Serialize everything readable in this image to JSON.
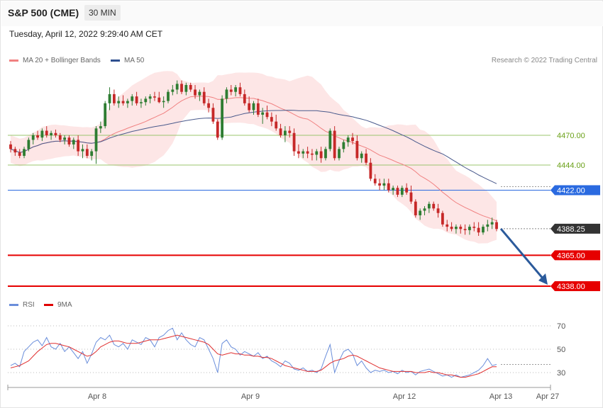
{
  "header": {
    "title": "S&P 500 (CME)",
    "timeframe": "30 MIN",
    "datetime": "Tuesday, April 12, 2022 9:29:40 AM CET"
  },
  "legend": {
    "ma20": "MA 20 + Bollinger Bands",
    "ma50": "MA 50",
    "rsi": "RSI",
    "ma9": "9MA",
    "copyright": "Research © 2022 Trading Central"
  },
  "colors": {
    "candle_up": "#2e7d32",
    "candle_down": "#c62828",
    "bollinger_fill": "#fde3e3",
    "ma20": "#f08080",
    "ma50": "#4a5a8c",
    "green_level": "#9bc46e",
    "pivot": "#2a6ae0",
    "support": "#e60000",
    "arrow": "#2b5a9b",
    "rsi": "#6a8edb",
    "rsi_ma": "#e03030"
  },
  "chart_data": {
    "type": "candlestick",
    "x_ticks": [
      "Apr 8",
      "Apr 9",
      "Apr 12",
      "Apr 13",
      "Apr 27"
    ],
    "price_range": [
      4310,
      4520
    ],
    "levels": [
      {
        "label": "4470.00",
        "value": 4470,
        "kind": "resistance"
      },
      {
        "label": "4444.00",
        "value": 4444,
        "kind": "resistance"
      },
      {
        "label": "4422.00",
        "value": 4422,
        "kind": "pivot"
      },
      {
        "label": "4388.25",
        "value": 4388.25,
        "kind": "last"
      },
      {
        "label": "4365.00",
        "value": 4365,
        "kind": "support"
      },
      {
        "label": "4338.00",
        "value": 4338,
        "kind": "support"
      }
    ],
    "forecast": {
      "from": 4388.25,
      "to": 4338
    },
    "candles": [
      [
        4462,
        4465,
        4455,
        4458
      ],
      [
        4458,
        4460,
        4452,
        4455
      ],
      [
        4455,
        4458,
        4450,
        4452
      ],
      [
        4452,
        4460,
        4450,
        4458
      ],
      [
        4458,
        4468,
        4456,
        4466
      ],
      [
        4466,
        4472,
        4462,
        4470
      ],
      [
        4470,
        4474,
        4466,
        4468
      ],
      [
        4468,
        4476,
        4465,
        4474
      ],
      [
        4474,
        4478,
        4468,
        4470
      ],
      [
        4470,
        4474,
        4466,
        4472
      ],
      [
        4472,
        4475,
        4468,
        4470
      ],
      [
        4470,
        4472,
        4464,
        4466
      ],
      [
        4466,
        4470,
        4462,
        4468
      ],
      [
        4468,
        4470,
        4460,
        4462
      ],
      [
        4462,
        4468,
        4458,
        4466
      ],
      [
        4466,
        4470,
        4452,
        4456
      ],
      [
        4456,
        4462,
        4450,
        4458
      ],
      [
        4458,
        4462,
        4450,
        4452
      ],
      [
        4452,
        4458,
        4448,
        4456
      ],
      [
        4456,
        4478,
        4445,
        4476
      ],
      [
        4476,
        4482,
        4472,
        4478
      ],
      [
        4478,
        4500,
        4476,
        4498
      ],
      [
        4498,
        4512,
        4492,
        4506
      ],
      [
        4506,
        4510,
        4496,
        4498
      ],
      [
        4498,
        4504,
        4494,
        4500
      ],
      [
        4500,
        4505,
        4496,
        4498
      ],
      [
        4498,
        4502,
        4494,
        4500
      ],
      [
        4500,
        4506,
        4496,
        4504
      ],
      [
        4504,
        4508,
        4496,
        4498
      ],
      [
        4498,
        4502,
        4494,
        4499
      ],
      [
        4499,
        4504,
        4496,
        4502
      ],
      [
        4502,
        4506,
        4498,
        4504
      ],
      [
        4504,
        4508,
        4500,
        4503
      ],
      [
        4503,
        4508,
        4498,
        4499
      ],
      [
        4499,
        4504,
        4494,
        4500
      ],
      [
        4500,
        4510,
        4498,
        4508
      ],
      [
        4508,
        4514,
        4505,
        4510
      ],
      [
        4510,
        4518,
        4506,
        4515
      ],
      [
        4515,
        4518,
        4506,
        4508
      ],
      [
        4508,
        4516,
        4505,
        4514
      ],
      [
        4514,
        4516,
        4508,
        4510
      ],
      [
        4510,
        4514,
        4502,
        4505
      ],
      [
        4505,
        4510,
        4500,
        4508
      ],
      [
        4508,
        4512,
        4496,
        4498
      ],
      [
        4498,
        4502,
        4490,
        4494
      ],
      [
        4494,
        4498,
        4480,
        4482
      ],
      [
        4482,
        4484,
        4466,
        4468
      ],
      [
        4468,
        4505,
        4466,
        4502
      ],
      [
        4502,
        4512,
        4498,
        4510
      ],
      [
        4510,
        4514,
        4505,
        4508
      ],
      [
        4508,
        4514,
        4504,
        4512
      ],
      [
        4512,
        4516,
        4504,
        4506
      ],
      [
        4506,
        4510,
        4496,
        4498
      ],
      [
        4498,
        4504,
        4490,
        4492
      ],
      [
        4492,
        4500,
        4488,
        4498
      ],
      [
        4498,
        4502,
        4486,
        4488
      ],
      [
        4488,
        4494,
        4480,
        4490
      ],
      [
        4490,
        4496,
        4484,
        4486
      ],
      [
        4486,
        4490,
        4478,
        4482
      ],
      [
        4482,
        4488,
        4474,
        4476
      ],
      [
        4476,
        4480,
        4468,
        4470
      ],
      [
        4470,
        4478,
        4464,
        4474
      ],
      [
        4474,
        4478,
        4468,
        4472
      ],
      [
        4472,
        4476,
        4452,
        4456
      ],
      [
        4456,
        4462,
        4450,
        4454
      ],
      [
        4454,
        4458,
        4450,
        4456
      ],
      [
        4456,
        4460,
        4450,
        4454
      ],
      [
        4454,
        4458,
        4448,
        4453
      ],
      [
        4453,
        4458,
        4448,
        4456
      ],
      [
        4456,
        4460,
        4446,
        4450
      ],
      [
        4450,
        4460,
        4448,
        4458
      ],
      [
        4458,
        4476,
        4456,
        4474
      ],
      [
        4474,
        4478,
        4448,
        4450
      ],
      [
        4450,
        4460,
        4448,
        4458
      ],
      [
        4458,
        4466,
        4455,
        4464
      ],
      [
        4464,
        4470,
        4460,
        4468
      ],
      [
        4468,
        4472,
        4462,
        4465
      ],
      [
        4465,
        4470,
        4448,
        4450
      ],
      [
        4450,
        4456,
        4446,
        4454
      ],
      [
        4454,
        4458,
        4444,
        4446
      ],
      [
        4446,
        4450,
        4430,
        4432
      ],
      [
        4432,
        4436,
        4426,
        4428
      ],
      [
        4428,
        4432,
        4422,
        4426
      ],
      [
        4426,
        4432,
        4422,
        4428
      ],
      [
        4428,
        4432,
        4420,
        4422
      ],
      [
        4422,
        4426,
        4418,
        4424
      ],
      [
        4424,
        4426,
        4416,
        4418
      ],
      [
        4418,
        4426,
        4416,
        4424
      ],
      [
        4424,
        4428,
        4418,
        4420
      ],
      [
        4420,
        4426,
        4410,
        4412
      ],
      [
        4412,
        4414,
        4398,
        4400
      ],
      [
        4400,
        4406,
        4396,
        4404
      ],
      [
        4404,
        4408,
        4400,
        4406
      ],
      [
        4406,
        4412,
        4402,
        4410
      ],
      [
        4410,
        4412,
        4404,
        4406
      ],
      [
        4406,
        4410,
        4398,
        4402
      ],
      [
        4402,
        4404,
        4390,
        4392
      ],
      [
        4392,
        4396,
        4386,
        4390
      ],
      [
        4390,
        4394,
        4386,
        4388
      ],
      [
        4388,
        4392,
        4384,
        4390
      ],
      [
        4390,
        4392,
        4384,
        4388
      ],
      [
        4388,
        4392,
        4383,
        4387
      ],
      [
        4387,
        4392,
        4383,
        4390
      ],
      [
        4390,
        4394,
        4386,
        4389
      ],
      [
        4389,
        4394,
        4382,
        4385
      ],
      [
        4385,
        4392,
        4383,
        4390
      ],
      [
        4390,
        4396,
        4386,
        4392
      ],
      [
        4392,
        4398,
        4388,
        4394
      ],
      [
        4394,
        4396,
        4386,
        4388
      ]
    ],
    "rsi": {
      "range": [
        20,
        80
      ],
      "ticks": [
        70,
        50,
        30
      ],
      "rsi_values": [
        36,
        38,
        35,
        48,
        52,
        56,
        58,
        53,
        60,
        52,
        50,
        55,
        48,
        52,
        47,
        42,
        48,
        38,
        46,
        56,
        60,
        58,
        62,
        54,
        52,
        55,
        50,
        58,
        56,
        54,
        60,
        58,
        52,
        60,
        62,
        66,
        68,
        58,
        64,
        58,
        54,
        52,
        60,
        58,
        50,
        42,
        30,
        55,
        58,
        52,
        50,
        45,
        48,
        46,
        44,
        47,
        42,
        44,
        40,
        38,
        35,
        40,
        38,
        33,
        32,
        34,
        31,
        32,
        30,
        33,
        44,
        54,
        30,
        40,
        48,
        50,
        46,
        36,
        40,
        34,
        30,
        32,
        31,
        32,
        30,
        31,
        29,
        32,
        30,
        31,
        28,
        31,
        32,
        33,
        31,
        29,
        27,
        28,
        26,
        28,
        26,
        27,
        28,
        30,
        32,
        36,
        42,
        36,
        37
      ],
      "ma_values": [
        34,
        35,
        36,
        38,
        40,
        44,
        48,
        51,
        54,
        55,
        55,
        54,
        53,
        52,
        50,
        48,
        46,
        44,
        45,
        48,
        52,
        54,
        56,
        57,
        57,
        56,
        55,
        55,
        55,
        56,
        57,
        58,
        58,
        58,
        59,
        60,
        61,
        62,
        61,
        60,
        59,
        58,
        57,
        56,
        54,
        50,
        46,
        45,
        46,
        47,
        46,
        46,
        45,
        45,
        44,
        44,
        43,
        43,
        42,
        40,
        38,
        36,
        35,
        34,
        33,
        32,
        31,
        31,
        31,
        32,
        35,
        38,
        40,
        41,
        42,
        44,
        45,
        44,
        42,
        40,
        38,
        36,
        34,
        33,
        32,
        31,
        31,
        31,
        31,
        31,
        30,
        30,
        30,
        31,
        30,
        30,
        29,
        28,
        28,
        27,
        26,
        26,
        27,
        28,
        29,
        31,
        33,
        35,
        35
      ]
    }
  }
}
